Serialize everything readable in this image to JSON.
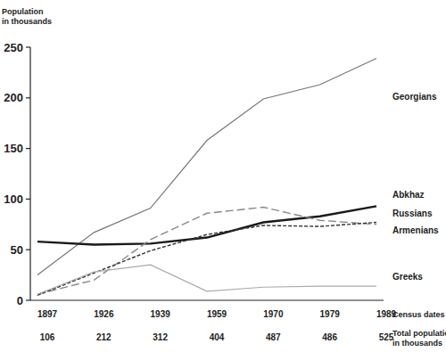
{
  "chart_data": {
    "type": "line",
    "y_label": "Population in thousands",
    "x_label": "Census dates",
    "categories": [
      "1897",
      "1926",
      "1939",
      "1959",
      "1970",
      "1979",
      "1989"
    ],
    "total_label": "Total population in thousands",
    "total_population": [
      106,
      212,
      312,
      404,
      487,
      486,
      525
    ],
    "ylim": [
      0,
      250
    ],
    "yticks": [
      0,
      50,
      100,
      150,
      200,
      250
    ],
    "grid": false,
    "series": [
      {
        "name": "Georgians",
        "color": "#777777",
        "line_style": "solid",
        "values": [
          25,
          67,
          91,
          158,
          199,
          213,
          239
        ]
      },
      {
        "name": "Abkhaz",
        "color": "#1a1a1a",
        "line_style": "solid",
        "values": [
          58,
          55,
          56,
          62,
          77,
          83,
          93
        ]
      },
      {
        "name": "Russians",
        "color": "#888888",
        "line_style": "dashed",
        "values": [
          6,
          20,
          60,
          86,
          92,
          79,
          75
        ]
      },
      {
        "name": "Armenians",
        "color": "#333333",
        "line_style": "dotted",
        "values": [
          5,
          27,
          49,
          65,
          74,
          73,
          77
        ]
      },
      {
        "name": "Greeks",
        "color": "#aaaaaa",
        "line_style": "solid",
        "values": [
          6,
          28,
          35,
          9,
          13,
          14,
          14
        ]
      }
    ]
  }
}
